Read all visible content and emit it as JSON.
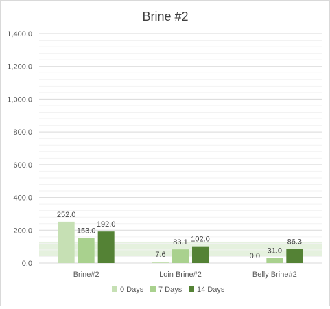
{
  "chart_data": {
    "type": "bar",
    "title": "Brine #2",
    "xlabel": "",
    "ylabel": "",
    "categories": [
      "Brine#2",
      "Loin Brine#2",
      "Belly Brine#2"
    ],
    "series": [
      {
        "name": "0 Days",
        "values": [
          252.0,
          7.6,
          0.0
        ],
        "value_labels": [
          "252.0",
          "7.6",
          "0.0"
        ],
        "color": "#c6e0b4"
      },
      {
        "name": "7 Days",
        "values": [
          153.0,
          83.1,
          31.0
        ],
        "value_labels": [
          "153.0",
          "83.1",
          "31.0"
        ],
        "color": "#a9d18e"
      },
      {
        "name": "14 Days",
        "values": [
          192.0,
          102.0,
          86.3
        ],
        "value_labels": [
          "192.0",
          "102.0",
          "86.3"
        ],
        "color": "#548235"
      }
    ],
    "ylim": [
      0,
      1400
    ],
    "y_ticks": [
      0,
      200,
      400,
      600,
      800,
      1000,
      1200,
      1400
    ],
    "y_tick_labels": [
      "0.0",
      "200.0",
      "400.0",
      "600.0",
      "800.0",
      "1,000.0",
      "1,200.0",
      "1,400.0"
    ],
    "reference_band": {
      "from": 40,
      "to": 130,
      "color": "#e2efda"
    },
    "grid": true,
    "minor_grid": true,
    "legend_position": "bottom"
  }
}
